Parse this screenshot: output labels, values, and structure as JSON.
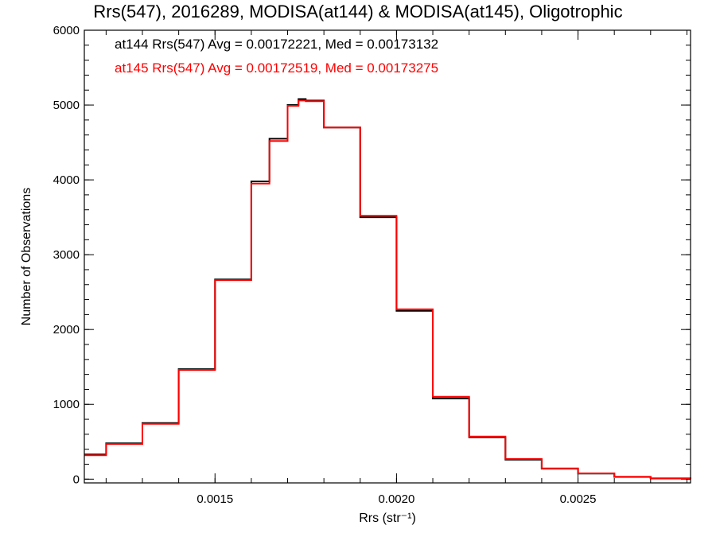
{
  "chart_data": {
    "type": "line",
    "title": "Rrs(547), 2016289, MODISA(at144) & MODISA(at145), Oligotrophic",
    "xlabel": "Rrs (str⁻¹)",
    "ylabel": "Number of Observations",
    "xlim": [
      0.00114,
      0.00281
    ],
    "ylim": [
      -50,
      6000
    ],
    "x_ticks": [
      0.0015,
      0.002,
      0.0025
    ],
    "x_tick_labels": [
      "0.0015",
      "0.0020",
      "0.0025"
    ],
    "y_ticks": [
      0,
      1000,
      2000,
      3000,
      4000,
      5000,
      6000
    ],
    "y_tick_labels": [
      "0",
      "1000",
      "2000",
      "3000",
      "4000",
      "5000",
      "6000"
    ],
    "annotations": [
      {
        "text": "at144 Rrs(547) Avg = 0.00172221, Med = 0.00173132",
        "color": "#000000"
      },
      {
        "text": "at145 Rrs(547) Avg = 0.00172519, Med = 0.00173275",
        "color": "#ff0000"
      }
    ],
    "series": [
      {
        "color": "#000000",
        "x": [
          0.00114,
          0.0012,
          0.0013,
          0.0014,
          0.0015,
          0.0016,
          0.00165,
          0.0017,
          0.00173,
          0.00175,
          0.0018,
          0.0019,
          0.002,
          0.0021,
          0.0022,
          0.0023,
          0.0024,
          0.0025,
          0.0026,
          0.0027,
          0.00281
        ],
        "y": [
          330,
          480,
          750,
          1470,
          2670,
          3980,
          4550,
          5000,
          5080,
          5060,
          4700,
          3500,
          2250,
          1080,
          560,
          260,
          140,
          75,
          30,
          10,
          0
        ]
      },
      {
        "color": "#ff0000",
        "x": [
          0.00114,
          0.0012,
          0.0013,
          0.0014,
          0.0015,
          0.0016,
          0.00165,
          0.0017,
          0.00173,
          0.00175,
          0.0018,
          0.0019,
          0.002,
          0.0021,
          0.0022,
          0.0023,
          0.0024,
          0.0025,
          0.0026,
          0.0027,
          0.00281
        ],
        "y": [
          320,
          470,
          740,
          1460,
          2660,
          3950,
          4520,
          4990,
          5060,
          5050,
          4700,
          3520,
          2270,
          1100,
          570,
          270,
          145,
          78,
          32,
          12,
          0
        ]
      }
    ]
  },
  "colors": {
    "series1": "#000000",
    "series2": "#ff0000",
    "background": "#ffffff"
  }
}
